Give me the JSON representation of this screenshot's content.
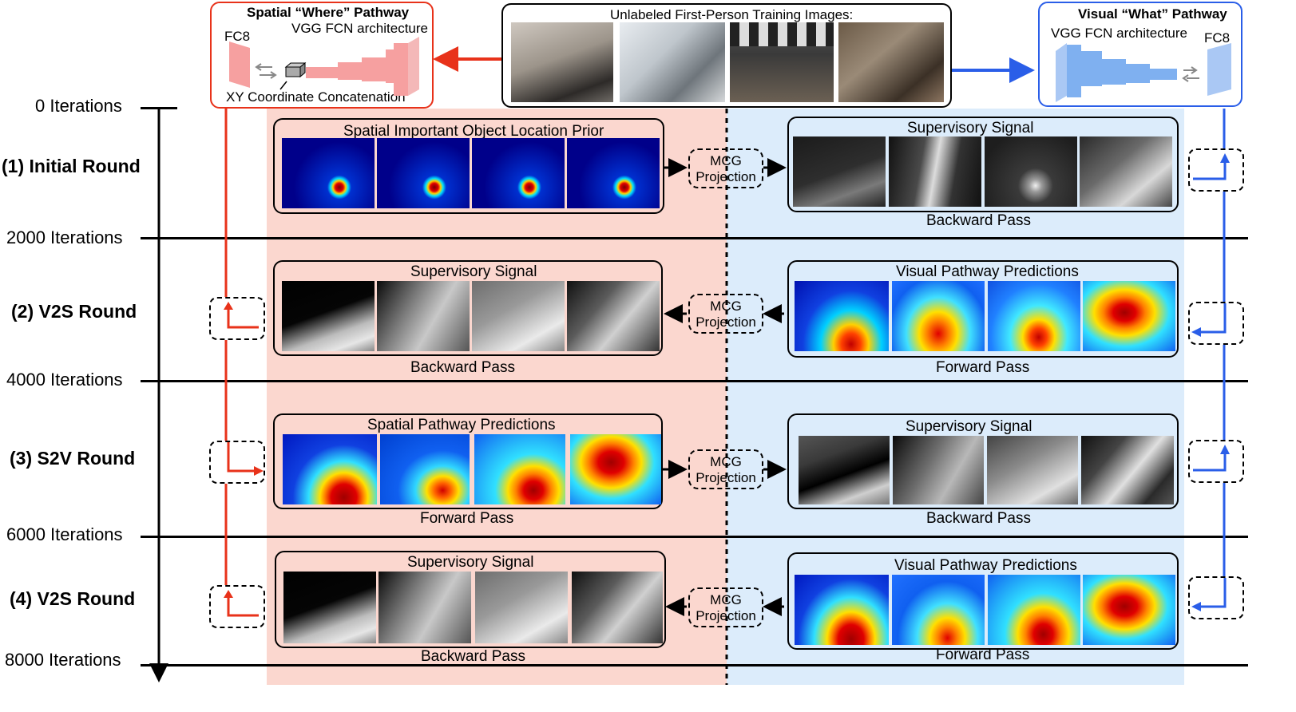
{
  "title_images": "Unlabeled First-Person Training Images:",
  "spatial_box": {
    "title": "Spatial “Where” Pathway",
    "arch": "VGG FCN architecture",
    "fc8": "FC8",
    "concat": "XY Coordinate Concatenation"
  },
  "visual_box": {
    "title": "Visual “What” Pathway",
    "arch": "VGG FCN architecture",
    "fc8": "FC8"
  },
  "iterations": [
    "0 Iterations",
    "2000 Iterations",
    "4000 Iterations",
    "6000 Iterations",
    "8000 Iterations"
  ],
  "rounds": [
    "(1) Initial Round",
    "(2) V2S Round",
    "(3) S2V Round",
    "(4) V2S Round"
  ],
  "row1": {
    "left_title": "Spatial Important Object Location Prior",
    "mcg": [
      "MCG",
      "Projection"
    ],
    "right_title": "Supervisory Signal",
    "right_caption": "Backward Pass"
  },
  "row2": {
    "left_title": "Supervisory Signal",
    "left_caption": "Backward Pass",
    "mcg": [
      "MCG",
      "Projection"
    ],
    "right_title": "Visual Pathway Predictions",
    "right_caption": "Forward Pass"
  },
  "row3": {
    "left_title": "Spatial Pathway Predictions",
    "left_caption": "Forward Pass",
    "mcg": [
      "MCG",
      "Projection"
    ],
    "right_title": "Supervisory Signal",
    "right_caption": "Backward Pass"
  },
  "row4": {
    "left_title": "Supervisory Signal",
    "left_caption": "Backward Pass",
    "mcg": [
      "MCG",
      "Projection"
    ],
    "right_title": "Visual Pathway Predictions",
    "right_caption": "Forward Pass"
  },
  "colors": {
    "red": "#e8321a",
    "blue": "#2a5ee8",
    "red_bg": "#fbd7cf",
    "blue_bg": "#dcecfb"
  }
}
